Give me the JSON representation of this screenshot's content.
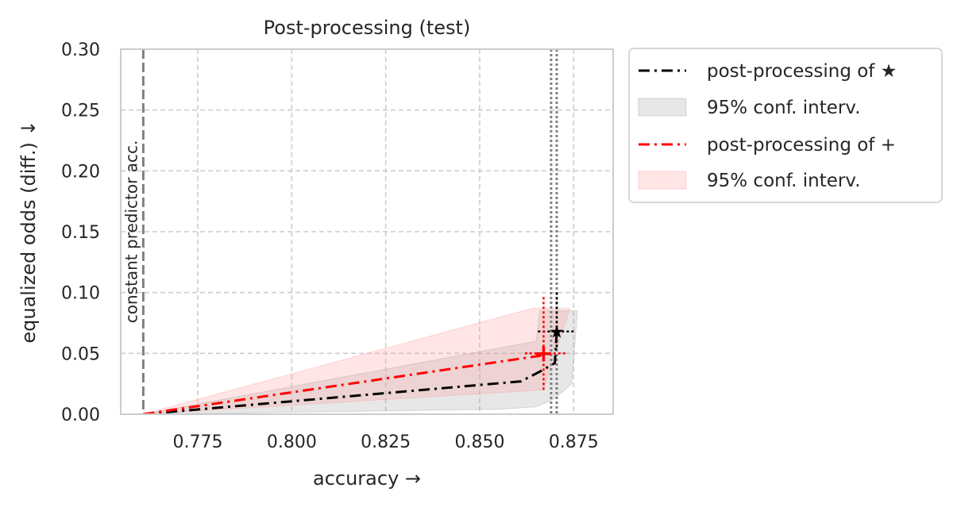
{
  "chart_data": {
    "type": "line",
    "title": "Post-processing (test)",
    "xlabel": "accuracy →",
    "ylabel": "equalized odds (diff.) ↓",
    "xlim": [
      0.7545,
      0.8855
    ],
    "ylim": [
      0.0,
      0.3
    ],
    "xticks": [
      0.775,
      0.8,
      0.825,
      0.85,
      0.875
    ],
    "xtick_labels": [
      "0.775",
      "0.800",
      "0.825",
      "0.850",
      "0.875"
    ],
    "yticks": [
      0.0,
      0.05,
      0.1,
      0.15,
      0.2,
      0.25,
      0.3
    ],
    "ytick_labels": [
      "0.00",
      "0.05",
      "0.10",
      "0.15",
      "0.20",
      "0.25",
      "0.30"
    ],
    "grid": true,
    "legend_position": "outside-right-top",
    "reference_line": {
      "x": 0.7605,
      "label": "constant predictor acc.",
      "color": "#808080"
    },
    "series": [
      {
        "name": "post-processing of ★",
        "color": "#000000",
        "points": [
          [
            0.7605,
            0.0
          ],
          [
            0.861,
            0.027
          ],
          [
            0.866,
            0.035
          ],
          [
            0.87,
            0.042
          ],
          [
            0.8705,
            0.068
          ]
        ],
        "band_name": "95% conf. interv.",
        "band_color": "#9e9e9e",
        "band_upper": [
          [
            0.7605,
            0.0
          ],
          [
            0.865,
            0.06
          ],
          [
            0.866,
            0.085
          ],
          [
            0.876,
            0.085
          ]
        ],
        "band_lower": [
          [
            0.7605,
            0.0
          ],
          [
            0.855,
            0.004
          ],
          [
            0.865,
            0.006
          ],
          [
            0.87,
            0.013
          ],
          [
            0.8745,
            0.025
          ],
          [
            0.876,
            0.085
          ]
        ],
        "marker": {
          "symbol": "★",
          "x": 0.8705,
          "y": 0.068,
          "xerr": [
            0.8655,
            0.8755
          ],
          "yerr": [
            0.055,
            0.101
          ]
        },
        "ref_x": 0.8705
      },
      {
        "name": "post-processing of +",
        "color": "#ff0000",
        "points": [
          [
            0.7605,
            0.0
          ],
          [
            0.866,
            0.048
          ],
          [
            0.867,
            0.05
          ]
        ],
        "band_name": "95% conf. interv.",
        "band_color": "#ff9999",
        "band_upper": [
          [
            0.7605,
            0.0
          ],
          [
            0.864,
            0.087
          ],
          [
            0.874,
            0.087
          ]
        ],
        "band_lower": [
          [
            0.7605,
            0.0
          ],
          [
            0.867,
            0.02
          ],
          [
            0.874,
            0.087
          ]
        ],
        "marker": {
          "symbol": "+",
          "x": 0.867,
          "y": 0.05,
          "xerr": [
            0.862,
            0.873
          ],
          "yerr": [
            0.02,
            0.097
          ]
        },
        "ref_x": 0.869
      }
    ]
  }
}
